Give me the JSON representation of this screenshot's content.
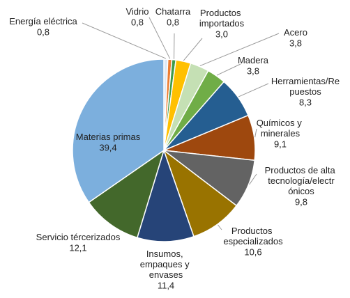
{
  "chart_data": {
    "type": "pie",
    "categories": [
      "Energía eléctrica",
      "Vidrio",
      "Chatarra",
      "Productos importados",
      "Acero",
      "Madera",
      "Herramientas/Repuestos",
      "Químicos y minerales",
      "Productos de alta tecnología/electrónicos",
      "Productos especializados",
      "Insumos, empaques y envases",
      "Servicio tércerizados",
      "Materias primas"
    ],
    "values": [
      0.8,
      0.8,
      0.8,
      3.0,
      3.8,
      3.8,
      8.3,
      9.1,
      9.8,
      10.6,
      11.4,
      12.1,
      39.4
    ],
    "value_labels": [
      "0,8",
      "0,8",
      "0,8",
      "3,0",
      "3,8",
      "3,8",
      "8,3",
      "9,1",
      "9,8",
      "10,6",
      "11,4",
      "12,1",
      "39,4"
    ],
    "colors": [
      "#dce8f5",
      "#ed7d31",
      "#3f9b4a",
      "#ffc000",
      "#c5e0b4",
      "#70ad47",
      "#255e91",
      "#9e480e",
      "#636363",
      "#997300",
      "#264478",
      "#43682b",
      "#7cafdd"
    ]
  }
}
